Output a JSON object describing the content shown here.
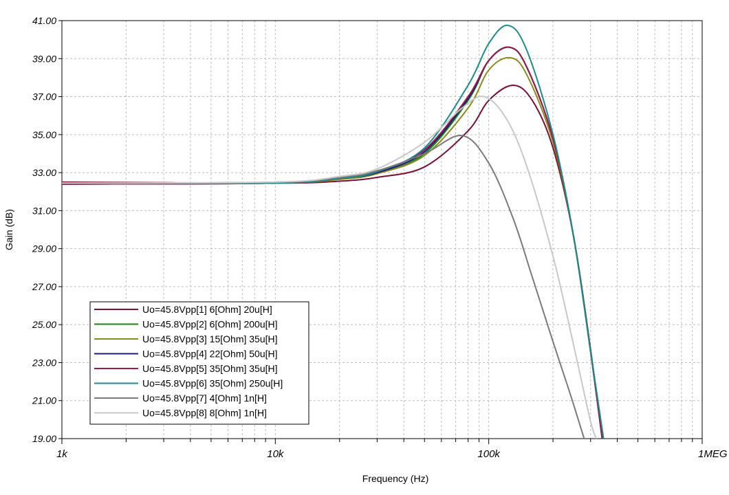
{
  "chart_data": {
    "type": "line",
    "xlabel": "Frequency (Hz)",
    "ylabel": "Gain (dB)",
    "x_scale": "log",
    "xlim": [
      1000,
      1000000
    ],
    "ylim": [
      19,
      41
    ],
    "grid": true,
    "legend_position": "bottom-left",
    "x_ticks": [
      {
        "value": 1000,
        "label": "1k"
      },
      {
        "value": 10000,
        "label": "10k"
      },
      {
        "value": 100000,
        "label": "100k"
      },
      {
        "value": 1000000,
        "label": "1MEG"
      }
    ],
    "y_ticks": [
      {
        "value": 41,
        "label": "41.00"
      },
      {
        "value": 39,
        "label": "39.00"
      },
      {
        "value": 37,
        "label": "37.00"
      },
      {
        "value": 35,
        "label": "35.00"
      },
      {
        "value": 33,
        "label": "33.00"
      },
      {
        "value": 31,
        "label": "31.00"
      },
      {
        "value": 29,
        "label": "29.00"
      },
      {
        "value": 27,
        "label": "27.00"
      },
      {
        "value": 25,
        "label": "25.00"
      },
      {
        "value": 23,
        "label": "23.00"
      },
      {
        "value": 21,
        "label": "21.00"
      },
      {
        "value": 19,
        "label": "19.00"
      }
    ],
    "series": [
      {
        "name": "Uo=45.8Vpp[1]  6[Ohm] 20u[H]",
        "color": "#7b0f30",
        "x": [
          1000,
          10000,
          20000,
          30000,
          50000,
          80000,
          100000,
          130000,
          160000,
          200000,
          250000,
          300000,
          340000
        ],
        "y": [
          32.5,
          32.45,
          32.55,
          32.75,
          33.3,
          35.2,
          36.8,
          37.6,
          36.8,
          34.3,
          29.6,
          23.7,
          19
        ]
      },
      {
        "name": "Uo=45.8Vpp[2]  6[Ohm] 200u[H]",
        "color": "#118811",
        "x": [
          1000,
          10000,
          20000,
          30000,
          50000,
          80000,
          100000,
          125000,
          150000,
          200000,
          250000,
          300000,
          340000
        ],
        "y": [
          32.4,
          32.45,
          32.65,
          32.95,
          34.0,
          36.8,
          38.9,
          39.6,
          38.6,
          34.8,
          29.6,
          23.6,
          19
        ]
      },
      {
        "name": "Uo=45.8Vpp[3]  15[Ohm] 35u[H]",
        "color": "#8c8a1a",
        "x": [
          1000,
          10000,
          20000,
          30000,
          50000,
          80000,
          100000,
          125000,
          150000,
          200000,
          250000,
          300000,
          340000
        ],
        "y": [
          32.4,
          32.45,
          32.65,
          32.95,
          33.9,
          36.4,
          38.4,
          39.05,
          38.2,
          34.6,
          29.6,
          23.6,
          19
        ]
      },
      {
        "name": "Uo=45.8Vpp[4]  22[Ohm] 50u[H]",
        "color": "#1a1a7c",
        "x": [
          1000,
          10000,
          20000,
          30000,
          50000,
          80000,
          100000,
          125000,
          150000,
          200000,
          250000,
          300000,
          340000
        ],
        "y": [
          32.4,
          32.45,
          32.7,
          33.0,
          34.1,
          36.9,
          38.9,
          39.6,
          38.6,
          34.8,
          29.6,
          23.6,
          19
        ]
      },
      {
        "name": "Uo=45.8Vpp[5]  35[Ohm] 35u[H]",
        "color": "#9a1a4a",
        "x": [
          1000,
          10000,
          20000,
          30000,
          50000,
          80000,
          100000,
          125000,
          150000,
          200000,
          250000,
          300000,
          340000
        ],
        "y": [
          32.4,
          32.45,
          32.7,
          33.05,
          34.2,
          37.0,
          38.9,
          39.6,
          38.6,
          34.8,
          29.6,
          23.6,
          19
        ]
      },
      {
        "name": "Uo=45.8Vpp[6]  35[Ohm] 250u[H]",
        "color": "#1a8c8c",
        "x": [
          1000,
          10000,
          20000,
          30000,
          50000,
          80000,
          100000,
          123000,
          150000,
          200000,
          250000,
          300000,
          345000
        ],
        "y": [
          32.45,
          32.45,
          32.7,
          33.05,
          34.3,
          37.6,
          39.8,
          40.75,
          39.5,
          35.0,
          29.6,
          23.6,
          19
        ]
      },
      {
        "name": "Uo=45.8Vpp[7]  4[Ohm] 1n[H]",
        "color": "#7a7a7a",
        "x": [
          1000,
          10000,
          20000,
          30000,
          50000,
          75000,
          100000,
          130000,
          160000,
          200000,
          240000,
          280000
        ],
        "y": [
          32.45,
          32.5,
          32.75,
          33.1,
          34.0,
          34.95,
          33.5,
          30.6,
          27.5,
          24.1,
          21.4,
          19
        ]
      },
      {
        "name": "Uo=45.8Vpp[8]  8[Ohm] 1n[H]",
        "color": "#c8c8c8",
        "x": [
          1000,
          10000,
          20000,
          30000,
          50000,
          75000,
          95000,
          120000,
          150000,
          200000,
          250000,
          300000,
          320000
        ],
        "y": [
          32.45,
          32.5,
          32.8,
          33.2,
          34.6,
          36.4,
          37.0,
          35.9,
          33.4,
          28.6,
          23.9,
          19.9,
          19
        ]
      }
    ]
  }
}
